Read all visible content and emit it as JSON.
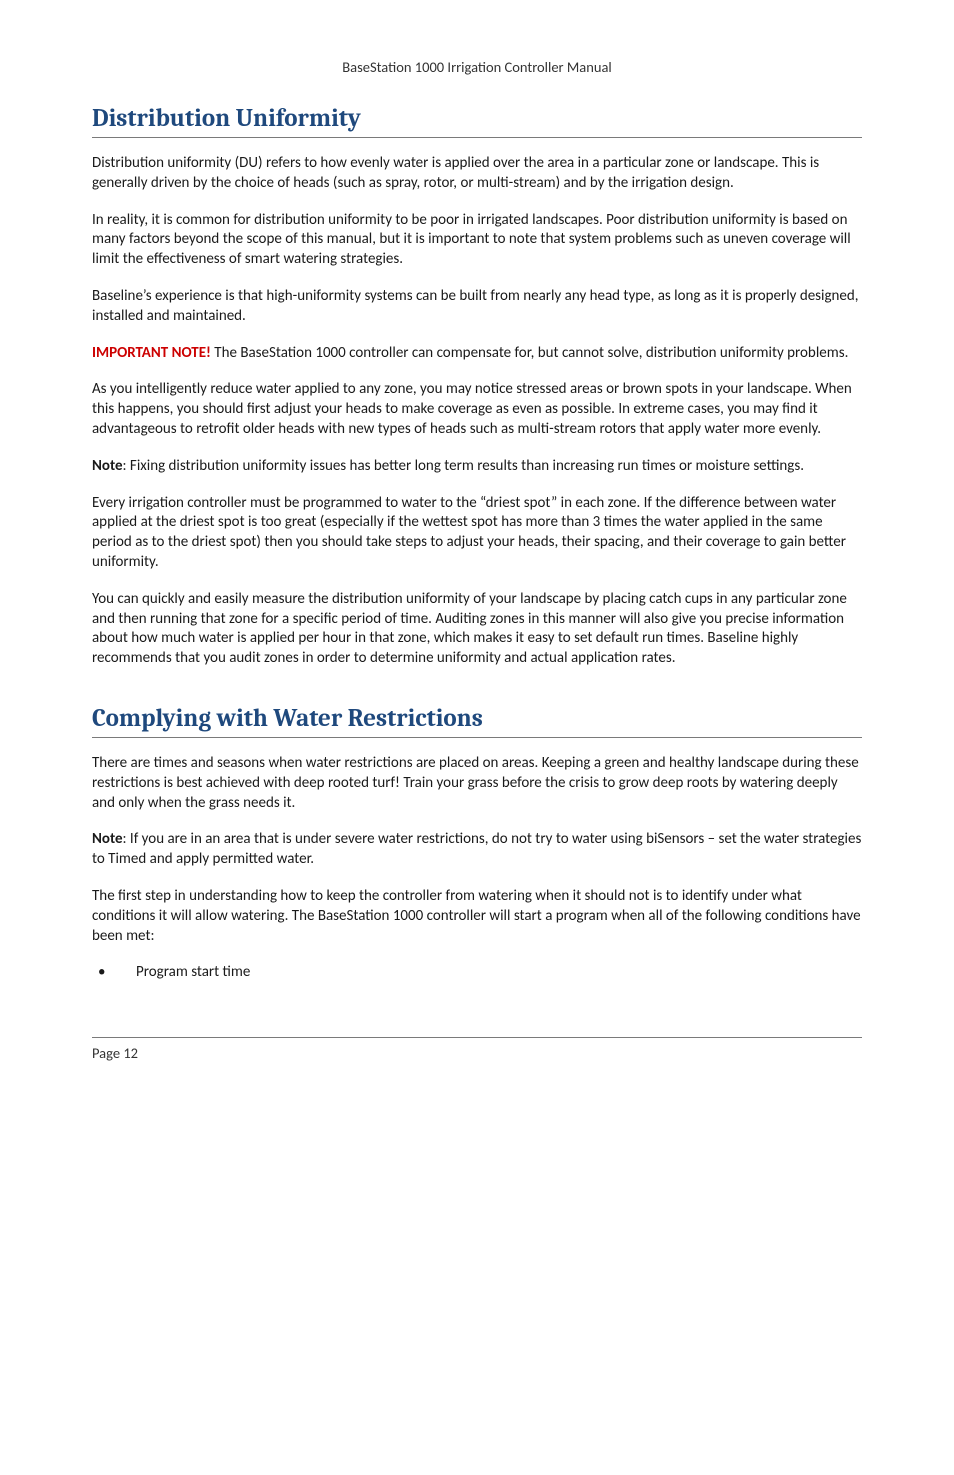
{
  "running_head": "BaseStation 1000 Irrigation Controller Manual",
  "section1": {
    "title": "Distribution Uniformity",
    "p1": "Distribution uniformity (DU) refers to how evenly water is applied over the area in a particular zone or landscape. This is generally driven by the choice of heads (such as spray, rotor, or multi-stream) and by the irrigation design.",
    "p2": "In reality, it is common for distribution uniformity to be poor in irrigated landscapes. Poor distribution uniformity is based on many factors beyond the scope of this manual, but it is important to note that system problems such as uneven coverage will limit the effectiveness of smart watering strategies.",
    "p3": "Baseline’s experience is that high-uniformity systems can be built from nearly any head type, as long as it is properly designed, installed and maintained.",
    "important_label": "IMPORTANT NOTE!",
    "p4": " The BaseStation 1000 controller can compensate for, but cannot solve, distribution uniformity problems.",
    "p5": "As you intelligently reduce water applied to any zone, you may notice stressed areas or brown spots in your landscape. When this happens, you should first adjust your heads to make coverage as even as possible. In extreme cases, you may find it advantageous to retrofit older heads with new types of heads such as multi-stream rotors that apply water more evenly.",
    "note_label": "Note",
    "p6": ": Fixing distribution uniformity issues has better long term results than increasing run times or moisture settings.",
    "p7": "Every irrigation controller must be programmed to water to the “driest spot” in each zone. If the difference between water applied at the driest spot is too great (especially if the wettest spot has more than 3 times the water applied in the same period as to the driest spot) then you should take steps to adjust your heads, their spacing, and their coverage to gain better uniformity.",
    "p8": "You can quickly and easily measure the distribution uniformity of your landscape by placing catch cups in any particular zone and then running that zone for a specific period of time. Auditing zones in this manner will also give you precise information about how much water is applied per hour in that zone, which makes it easy to set default run times. Baseline highly recommends that you audit zones in order to determine uniformity and actual application rates."
  },
  "section2": {
    "title": "Complying with Water Restrictions",
    "p1": "There are times and seasons when water restrictions are placed on areas. Keeping a green and healthy landscape during these restrictions is best achieved with deep rooted turf! Train your grass before the crisis to grow deep roots by watering deeply and only when the grass needs it.",
    "note_label": "Note",
    "p2": ": If you are in an area that is under severe water restrictions, do not try to water using biSensors – set the water strategies to Timed and apply permitted water.",
    "p3": "The first step in understanding how to keep the controller from watering when it should not is to identify under what conditions it will allow watering. The BaseStation 1000 controller will start a program when all of the following conditions have been met:",
    "bullets": [
      "Program start time"
    ]
  },
  "page_number": "Page 12",
  "colors": {
    "heading": "#1f497d",
    "important": "#cc0000",
    "rule": "#7a7a7a",
    "body": "#1a1a1a",
    "background": "#ffffff"
  },
  "typography": {
    "heading_family": "Cambria",
    "body_family": "Calibri",
    "heading_size_pt": 18,
    "body_size_pt": 11,
    "running_head_size_pt": 11
  }
}
